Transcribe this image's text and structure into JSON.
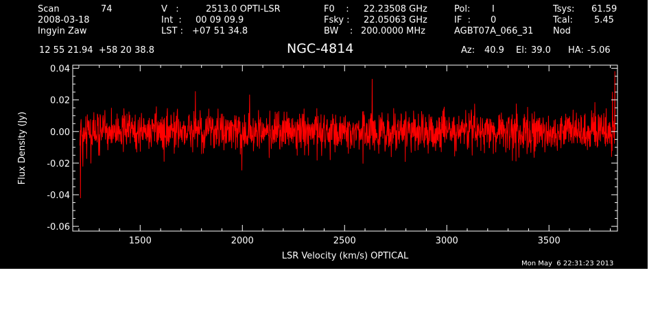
{
  "header": {
    "scan_label": "Scan",
    "scan_value": "74",
    "date": "2008-03-18",
    "observer": "Ingyin Zaw",
    "v_label": "V   :",
    "v_value": "2513.0 OPTI-LSR",
    "int_label": "Int  :",
    "int_value": "00 09 09.9",
    "lst_label": "LST :",
    "lst_value": "+07 51 34.8",
    "f0_label": "F0    :",
    "f0_value": "22.23508 GHz",
    "fsky_label": "Fsky :",
    "fsky_value": "22.05063 GHz",
    "bw_label": "BW    :",
    "bw_value": "200.0000 MHz",
    "pol_label": "Pol:",
    "pol_value": "I",
    "if_label": "IF  :",
    "if_value": "0",
    "project": "AGBT07A_066_31",
    "tsys_label": "Tsys:",
    "tsys_value": "61.59",
    "tcal_label": "Tcal:",
    "tcal_value": "5.45",
    "mode": "Nod",
    "coords": "12 55 21.94  +58 20 38.8",
    "az_label": "Az:",
    "az_value": "40.9",
    "el_label": "El:",
    "el_value": "39.0",
    "ha_label": "HA:",
    "ha_value": "-5.06"
  },
  "timestamp": "Mon May  6 22:31:23 2013",
  "chart_data": {
    "type": "line",
    "title": "NGC-4814",
    "xlabel": "LSR Velocity (km/s) OPTICAL",
    "ylabel": "Flux Density (Jy)",
    "xlim": [
      1170,
      3835
    ],
    "ylim": [
      -0.063,
      0.042
    ],
    "xticks": [
      1500,
      2000,
      2500,
      3000,
      3500
    ],
    "yticks": [
      -0.06,
      -0.04,
      -0.02,
      0.0,
      0.02,
      0.04
    ],
    "ytick_labels": [
      "-0.06",
      "-0.04",
      "-0.02",
      "0.00",
      "0.02",
      "0.04"
    ],
    "grid": false,
    "series": [
      {
        "color": "#ff0000",
        "x_start": 1205,
        "x_end": 3825,
        "points": 1800,
        "baseline": 0.0,
        "rms": 0.0085,
        "edge_features": [
          {
            "x": 1208,
            "y": -0.042
          },
          {
            "x": 1220,
            "y": -0.022
          },
          {
            "x": 3810,
            "y": 0.025
          },
          {
            "x": 3822,
            "y": 0.038
          }
        ]
      }
    ]
  }
}
